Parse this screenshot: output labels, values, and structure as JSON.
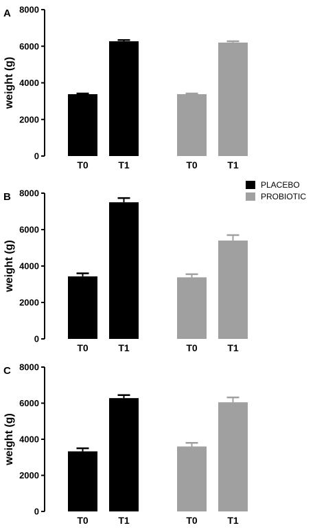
{
  "colors": {
    "placebo": "#000000",
    "probiotic": "#a0a0a0",
    "axis": "#000000"
  },
  "legend": [
    {
      "label": "PLACEBO",
      "color": "#000000"
    },
    {
      "label": "PROBIOTIC",
      "color": "#a0a0a0"
    }
  ],
  "chart_data": [
    {
      "type": "bar",
      "panel": "A",
      "ylabel": "weight (g)",
      "ylim": [
        0,
        8000
      ],
      "yticks": [
        0,
        2000,
        4000,
        6000,
        8000
      ],
      "categories": [
        "T0",
        "T1",
        "T0",
        "T1"
      ],
      "groups": [
        "PLACEBO",
        "PLACEBO",
        "PROBIOTIC",
        "PROBIOTIC"
      ],
      "values": [
        3380,
        6270,
        3380,
        6200
      ],
      "errors": [
        40,
        70,
        40,
        70
      ]
    },
    {
      "type": "bar",
      "panel": "B",
      "ylabel": "weight (g)",
      "ylim": [
        0,
        8000
      ],
      "yticks": [
        0,
        2000,
        4000,
        6000,
        8000
      ],
      "categories": [
        "T0",
        "T1",
        "T0",
        "T1"
      ],
      "groups": [
        "PLACEBO",
        "PLACEBO",
        "PROBIOTIC",
        "PROBIOTIC"
      ],
      "values": [
        3430,
        7500,
        3380,
        5400
      ],
      "errors": [
        170,
        230,
        170,
        300
      ]
    },
    {
      "type": "bar",
      "panel": "C",
      "ylabel": "weight (g)",
      "ylim": [
        0,
        8000
      ],
      "yticks": [
        0,
        2000,
        4000,
        6000,
        8000
      ],
      "categories": [
        "T0",
        "T1",
        "T0",
        "T1"
      ],
      "groups": [
        "PLACEBO",
        "PLACEBO",
        "PROBIOTIC",
        "PROBIOTIC"
      ],
      "values": [
        3330,
        6280,
        3600,
        6050
      ],
      "errors": [
        170,
        170,
        200,
        270
      ]
    }
  ]
}
